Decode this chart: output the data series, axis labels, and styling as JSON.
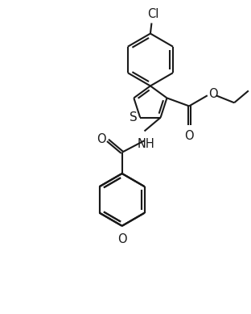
{
  "bg_color": "#ffffff",
  "line_color": "#1a1a1a",
  "line_width": 1.5,
  "figsize": [
    3.12,
    3.89
  ],
  "dpi": 100,
  "xlim": [
    0,
    10
  ],
  "ylim": [
    0,
    12.5
  ]
}
